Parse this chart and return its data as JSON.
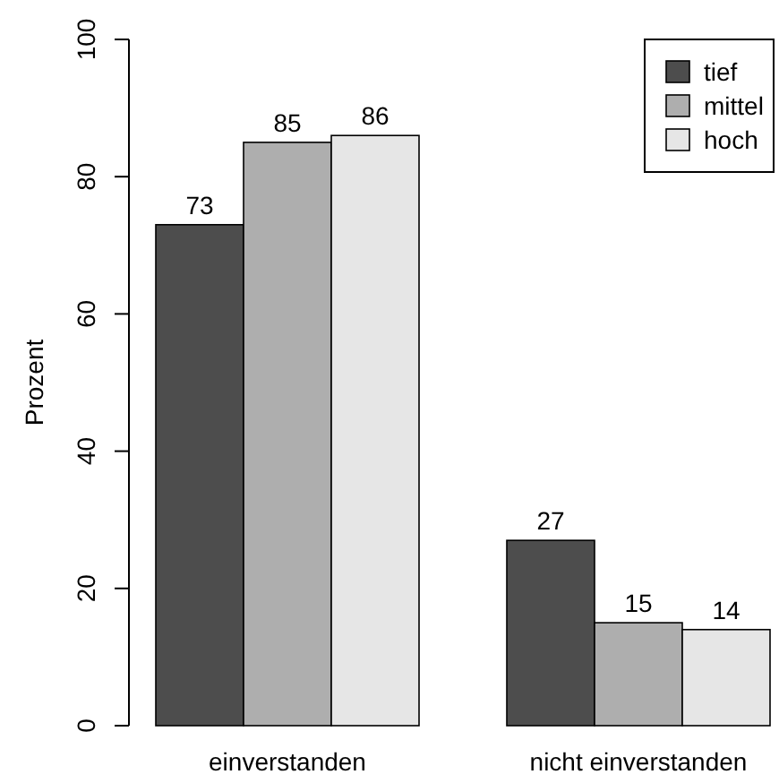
{
  "chart_data": {
    "type": "bar",
    "ylabel": "Prozent",
    "categories": [
      "einverstanden",
      "nicht einverstanden"
    ],
    "series": [
      {
        "name": "tief",
        "color": "#4d4d4d",
        "values": [
          73,
          27
        ]
      },
      {
        "name": "mittel",
        "color": "#aeaeae",
        "values": [
          85,
          15
        ]
      },
      {
        "name": "hoch",
        "color": "#e6e6e6",
        "values": [
          86,
          14
        ]
      }
    ],
    "ylim": [
      0,
      100
    ],
    "yticks": [
      0,
      20,
      40,
      60,
      80,
      100
    ],
    "data_labels": true,
    "legend": "top right",
    "grid": false
  }
}
